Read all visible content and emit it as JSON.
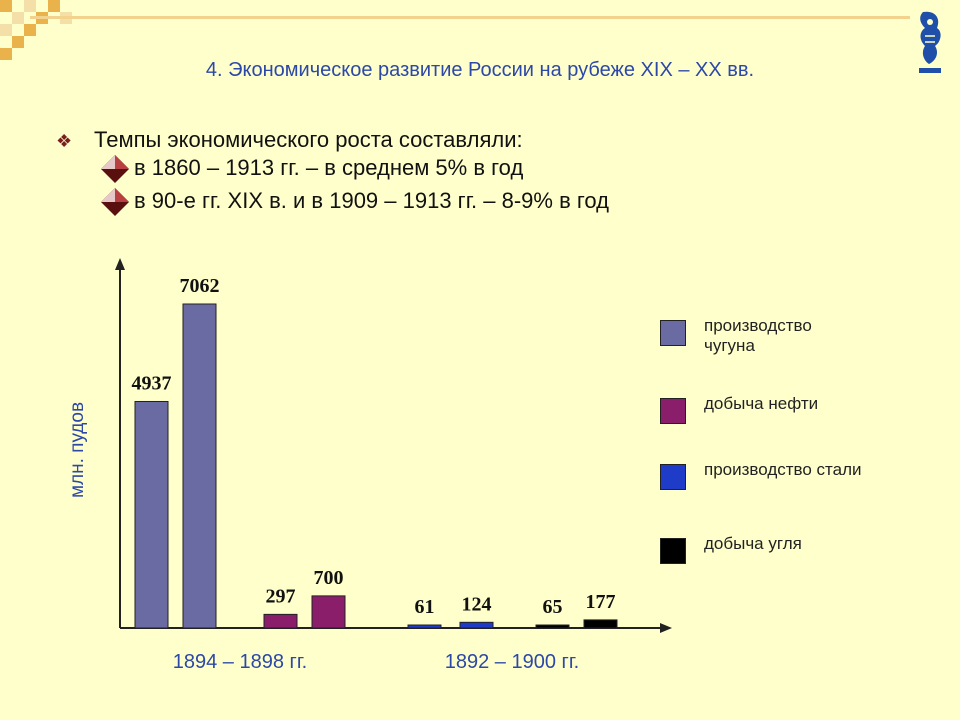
{
  "slide": {
    "title": "4. Экономическое развитие России на рубеже XIX – XX вв.",
    "bullet_main": "Темпы экономического роста составляли:",
    "sub_bullets": [
      "в 1860 – 1913 гг. – в среднем 5% в год",
      "в 90-е гг. XIX в. и в 1909 – 1913 гг. – 8-9% в год"
    ]
  },
  "colors": {
    "background": "#FFFFCC",
    "title": "#2C48A8",
    "iron": "#6B6BA3",
    "oil": "#8B1E6B",
    "steel": "#1E3CC8",
    "coal": "#000000"
  },
  "chart_data": {
    "type": "bar",
    "ylabel": "млн. пудов",
    "xlabel": "",
    "ylim": [
      0,
      8000
    ],
    "grid": false,
    "legend_position": "right",
    "groups": [
      {
        "label": "1894 – 1898 гг.",
        "bars": [
          {
            "series": "производство чугуна",
            "value": 4937
          },
          {
            "series": "производство чугуна",
            "value": 7062
          },
          {
            "series": "добыча нефти",
            "value": 297
          },
          {
            "series": "добыча нефти",
            "value": 700
          }
        ]
      },
      {
        "label": "1892 – 1900 гг.",
        "bars": [
          {
            "series": "производство стали",
            "value": 61
          },
          {
            "series": "производство стали",
            "value": 124
          },
          {
            "series": "добыча угля",
            "value": 65
          },
          {
            "series": "добыча угля",
            "value": 177
          }
        ]
      }
    ],
    "legend": [
      {
        "name": "производство чугуна",
        "color": "#6B6BA3"
      },
      {
        "name": "добыча нефти",
        "color": "#8B1E6B"
      },
      {
        "name": "производство стали",
        "color": "#1E3CC8"
      },
      {
        "name": "добыча угля",
        "color": "#000000"
      }
    ]
  }
}
